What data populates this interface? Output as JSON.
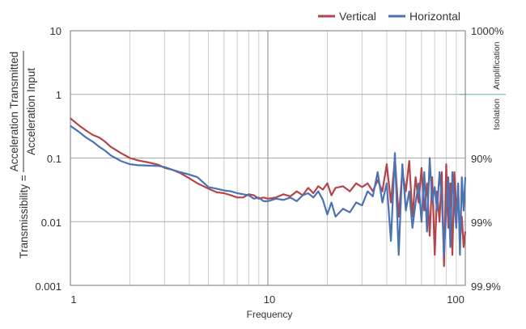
{
  "chart_data": {
    "type": "line",
    "x_scale": "log",
    "y_scale": "log",
    "xlim": [
      1,
      100
    ],
    "ylim": [
      0.001,
      10
    ],
    "xlabel": "Frequency",
    "ylabel_prefix": "Transmissibility =",
    "ylabel_numerator": "Acceleration Transmitted",
    "ylabel_denominator": "Acceleration Input",
    "x_ticks": [
      "1",
      "10",
      "100"
    ],
    "y_ticks": [
      "10",
      "1",
      "0.1",
      "0.01",
      "0.001"
    ],
    "right_axis_title_1": "Isolation",
    "right_axis_title_2": "Amplification",
    "right_ticks": [
      "1000%",
      "90%",
      "99%",
      "99.9%"
    ],
    "legend": [
      "Vertical",
      "Horizontal"
    ],
    "legend_position": "top-right",
    "colors": {
      "vertical": "#b5444a",
      "horizontal": "#4a72b5",
      "grid": "#cccccc",
      "unity_line": "#5fb5a8"
    },
    "series": [
      {
        "name": "Vertical",
        "color": "#b5444a",
        "x": [
          1,
          1.1,
          1.2,
          1.3,
          1.4,
          1.5,
          1.6,
          1.8,
          2,
          2.2,
          2.5,
          2.8,
          3,
          3.3,
          3.6,
          4,
          4.4,
          5,
          5.5,
          6,
          6.5,
          7,
          7.5,
          8,
          8.5,
          9,
          9.5,
          10,
          11,
          12,
          13,
          14,
          15,
          16,
          17,
          18,
          19,
          20,
          21,
          22,
          24,
          26,
          28,
          30,
          32,
          34,
          36,
          38,
          40,
          42,
          44,
          46,
          48,
          50,
          52,
          54,
          56,
          58,
          60,
          62,
          64,
          66,
          68,
          70,
          72,
          74,
          76,
          78,
          80,
          82,
          84,
          86,
          88,
          90,
          92,
          94,
          96,
          98,
          100
        ],
        "values": [
          0.42,
          0.33,
          0.27,
          0.23,
          0.21,
          0.18,
          0.15,
          0.12,
          0.1,
          0.092,
          0.085,
          0.078,
          0.07,
          0.065,
          0.058,
          0.048,
          0.04,
          0.033,
          0.029,
          0.028,
          0.026,
          0.024,
          0.024,
          0.027,
          0.026,
          0.023,
          0.024,
          0.023,
          0.024,
          0.027,
          0.025,
          0.03,
          0.026,
          0.034,
          0.028,
          0.036,
          0.032,
          0.04,
          0.026,
          0.034,
          0.036,
          0.03,
          0.04,
          0.035,
          0.04,
          0.03,
          0.045,
          0.03,
          0.08,
          0.02,
          0.1,
          0.012,
          0.06,
          0.03,
          0.09,
          0.012,
          0.05,
          0.02,
          0.07,
          0.015,
          0.04,
          0.006,
          0.05,
          0.003,
          0.03,
          0.01,
          0.06,
          0.002,
          0.08,
          0.008,
          0.04,
          0.003,
          0.06,
          0.015,
          0.03,
          0.005,
          0.012,
          0.004,
          0.007
        ]
      },
      {
        "name": "Horizontal",
        "color": "#4a72b5",
        "x": [
          1,
          1.1,
          1.2,
          1.3,
          1.4,
          1.5,
          1.6,
          1.8,
          2,
          2.2,
          2.5,
          2.8,
          3,
          3.3,
          3.6,
          4,
          4.4,
          5,
          5.5,
          6,
          6.5,
          7,
          7.5,
          8,
          8.5,
          9,
          9.5,
          10,
          11,
          12,
          13,
          14,
          15,
          16,
          17,
          18,
          19,
          20,
          21,
          22,
          24,
          26,
          28,
          30,
          32,
          34,
          36,
          38,
          40,
          42,
          44,
          46,
          48,
          50,
          52,
          54,
          56,
          58,
          60,
          62,
          64,
          66,
          68,
          70,
          72,
          74,
          76,
          78,
          80,
          82,
          84,
          86,
          88,
          90,
          92,
          94,
          96,
          98,
          100
        ],
        "values": [
          0.32,
          0.26,
          0.21,
          0.18,
          0.15,
          0.13,
          0.11,
          0.09,
          0.08,
          0.077,
          0.076,
          0.075,
          0.072,
          0.065,
          0.06,
          0.055,
          0.05,
          0.035,
          0.033,
          0.031,
          0.03,
          0.028,
          0.027,
          0.026,
          0.023,
          0.024,
          0.021,
          0.021,
          0.023,
          0.022,
          0.024,
          0.021,
          0.026,
          0.028,
          0.024,
          0.03,
          0.022,
          0.013,
          0.02,
          0.012,
          0.016,
          0.014,
          0.02,
          0.018,
          0.03,
          0.025,
          0.06,
          0.02,
          0.04,
          0.005,
          0.12,
          0.003,
          0.08,
          0.015,
          0.03,
          0.008,
          0.02,
          0.04,
          0.01,
          0.06,
          0.007,
          0.1,
          0.02,
          0.035,
          0.015,
          0.06,
          0.025,
          0.003,
          0.015,
          0.05,
          0.004,
          0.06,
          0.02,
          0.008,
          0.04,
          0.003,
          0.05,
          0.015,
          0.05
        ]
      }
    ]
  }
}
